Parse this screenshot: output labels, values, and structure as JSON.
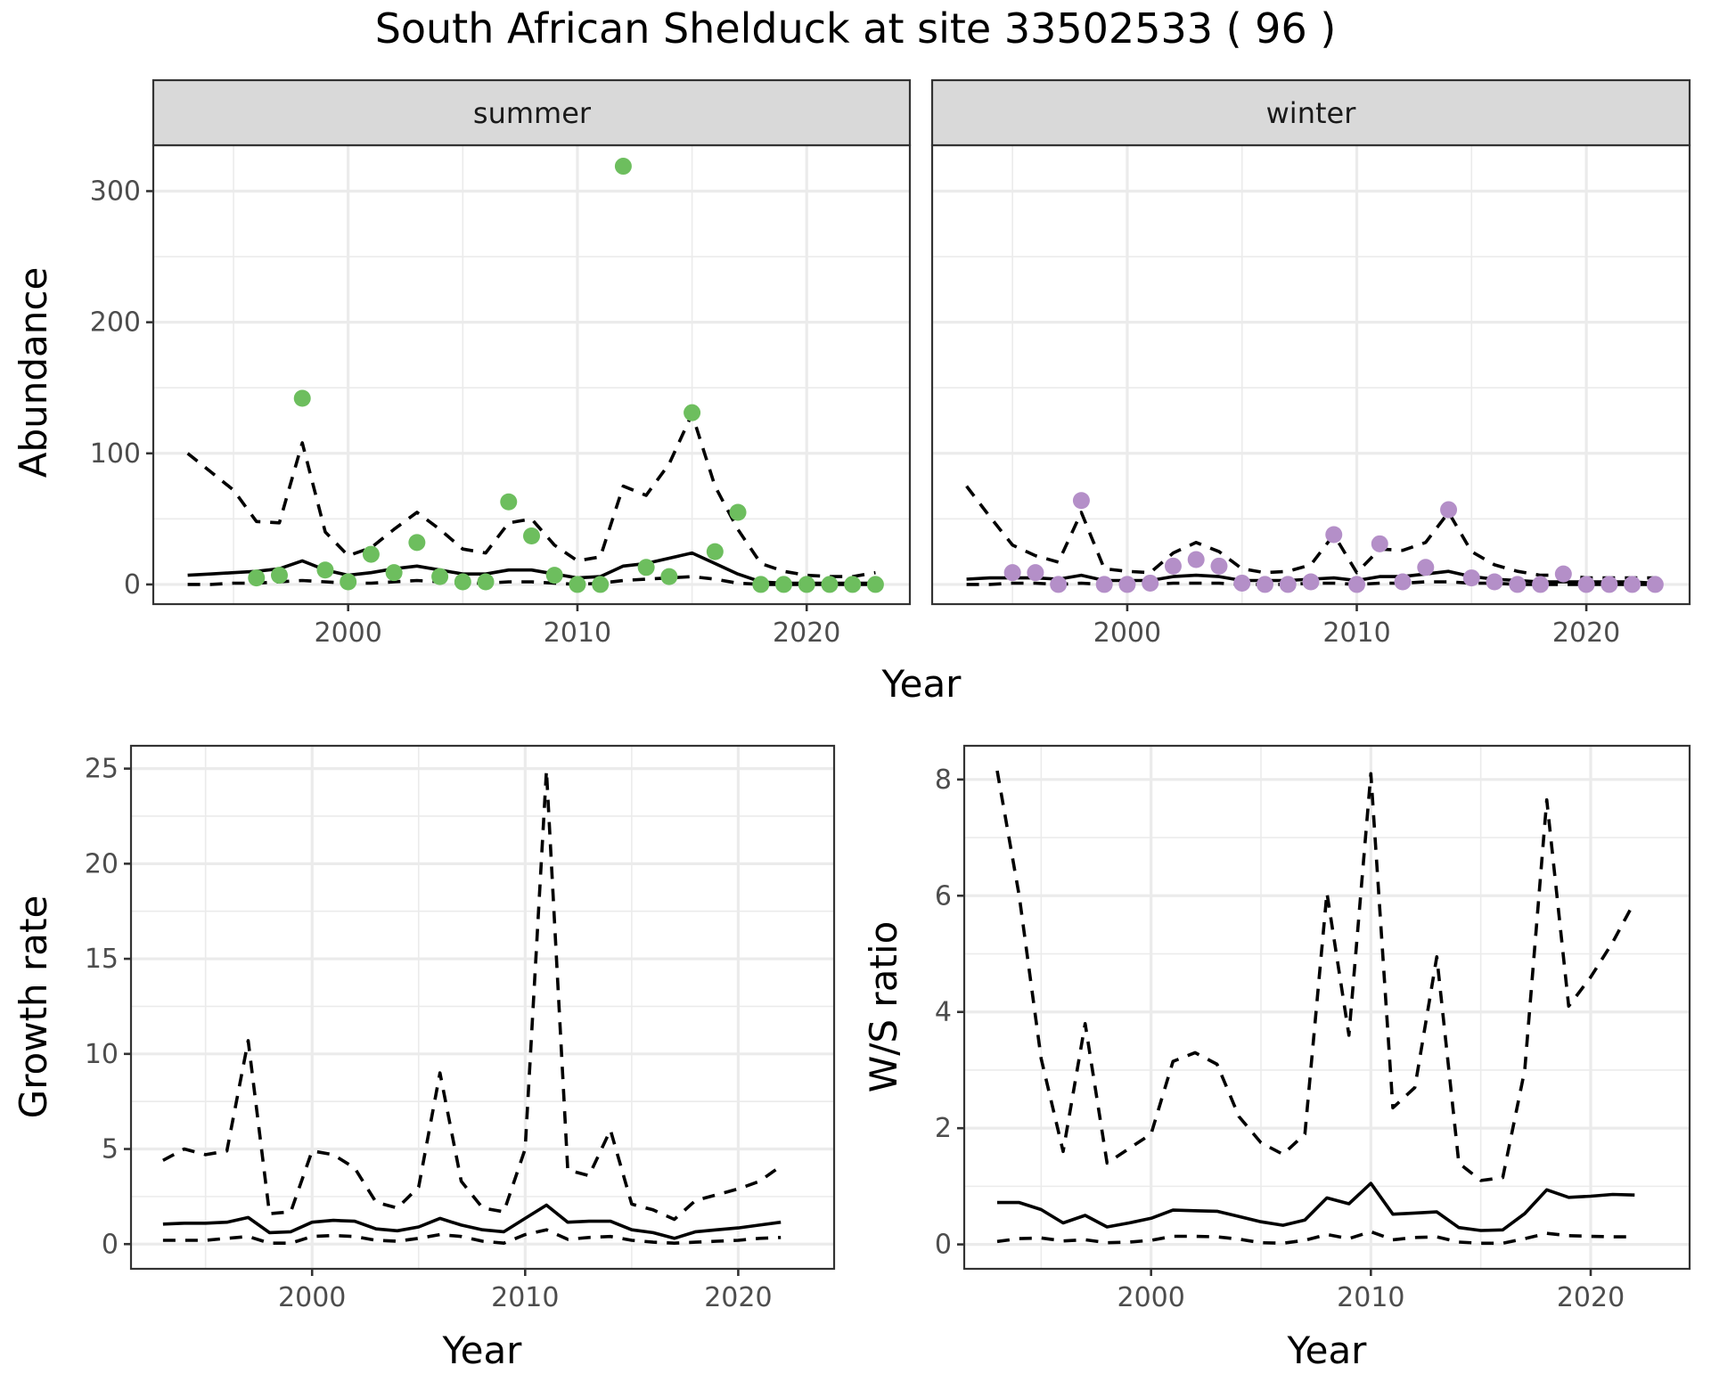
{
  "chart_data": {
    "title": "South African Shelduck at site 33502533 ( 96 )",
    "panels": [
      {
        "id": "abundance-summer",
        "type": "line+scatter",
        "strip_label": "summer",
        "ylabel": "Abundance",
        "xlabel": "",
        "ylim": [
          -15,
          335
        ],
        "xlim": [
          1991.5,
          2024.5
        ],
        "yticks": [
          0,
          100,
          200,
          300
        ],
        "xticks": [
          2000,
          2010,
          2020
        ],
        "point_color": "#6DBE5E",
        "points": {
          "x": [
            1996,
            1997,
            1998,
            1999,
            2000,
            2001,
            2002,
            2003,
            2004,
            2005,
            2006,
            2007,
            2008,
            2009,
            2010,
            2011,
            2012,
            2013,
            2014,
            2015,
            2016,
            2017,
            2018,
            2019,
            2020,
            2021,
            2022,
            2023
          ],
          "y": [
            5,
            7,
            142,
            11,
            2,
            23,
            9,
            32,
            6,
            2,
            2,
            63,
            37,
            7,
            0,
            0,
            319,
            13,
            6,
            131,
            25,
            55,
            0,
            0,
            0,
            0,
            0,
            0
          ]
        },
        "lines": {
          "x": [
            1993,
            1994,
            1995,
            1996,
            1997,
            1998,
            1999,
            2000,
            2001,
            2002,
            2003,
            2004,
            2005,
            2006,
            2007,
            2008,
            2009,
            2010,
            2011,
            2012,
            2013,
            2014,
            2015,
            2016,
            2017,
            2018,
            2019,
            2020,
            2021,
            2022,
            2023
          ],
          "upper": [
            100,
            86,
            72,
            48,
            47,
            108,
            40,
            22,
            28,
            42,
            55,
            42,
            27,
            24,
            47,
            50,
            30,
            18,
            21,
            75,
            68,
            92,
            130,
            75,
            42,
            16,
            10,
            7,
            6,
            6,
            9
          ],
          "mid": [
            7,
            8,
            9,
            10,
            12,
            18,
            11,
            7,
            9,
            12,
            14,
            11,
            8,
            8,
            11,
            11,
            8,
            5,
            6,
            14,
            16,
            20,
            24,
            16,
            8,
            2,
            1,
            1,
            1,
            1,
            1
          ],
          "lower": [
            0,
            0,
            1,
            1,
            2,
            3,
            2,
            1,
            1,
            2,
            3,
            2,
            1,
            1,
            2,
            2,
            1,
            0,
            1,
            3,
            4,
            5,
            6,
            4,
            1,
            0,
            0,
            0,
            0,
            0,
            0
          ]
        }
      },
      {
        "id": "abundance-winter",
        "type": "line+scatter",
        "strip_label": "winter",
        "ylabel": "",
        "xlabel": "",
        "ylim": [
          -15,
          335
        ],
        "xlim": [
          1991.5,
          2024.5
        ],
        "yticks": [
          0,
          100,
          200,
          300
        ],
        "xticks": [
          2000,
          2010,
          2020
        ],
        "point_color": "#B48FC8",
        "points": {
          "x": [
            1995,
            1996,
            1997,
            1998,
            1999,
            2000,
            2001,
            2002,
            2003,
            2004,
            2005,
            2006,
            2007,
            2008,
            2009,
            2010,
            2011,
            2012,
            2013,
            2014,
            2015,
            2016,
            2017,
            2018,
            2019,
            2020,
            2021,
            2022,
            2023
          ],
          "y": [
            9,
            9,
            0,
            64,
            0,
            0,
            1,
            14,
            19,
            14,
            1,
            0,
            0,
            2,
            38,
            0,
            31,
            2,
            13,
            57,
            5,
            2,
            0,
            0,
            8,
            0,
            0,
            0,
            0
          ]
        },
        "lines": {
          "x": [
            1993,
            1994,
            1995,
            1996,
            1997,
            1998,
            1999,
            2000,
            2001,
            2002,
            2003,
            2004,
            2005,
            2006,
            2007,
            2008,
            2009,
            2010,
            2011,
            2012,
            2013,
            2014,
            2015,
            2016,
            2017,
            2018,
            2019,
            2020,
            2021,
            2022,
            2023
          ],
          "upper": [
            75,
            52,
            30,
            22,
            17,
            55,
            12,
            10,
            9,
            24,
            32,
            25,
            12,
            9,
            10,
            15,
            38,
            9,
            27,
            26,
            32,
            55,
            25,
            15,
            10,
            7,
            7,
            5,
            5,
            5,
            5
          ],
          "mid": [
            4,
            5,
            5,
            5,
            4,
            7,
            3,
            3,
            3,
            6,
            7,
            6,
            3,
            3,
            3,
            4,
            5,
            3,
            6,
            6,
            8,
            10,
            6,
            4,
            3,
            2,
            2,
            2,
            2,
            2,
            1
          ],
          "lower": [
            0,
            0,
            1,
            1,
            0,
            1,
            0,
            0,
            0,
            1,
            1,
            1,
            0,
            0,
            0,
            1,
            1,
            0,
            1,
            1,
            2,
            2,
            1,
            1,
            0,
            0,
            0,
            0,
            0,
            0,
            0
          ]
        }
      },
      {
        "id": "growth-rate",
        "type": "line",
        "ylabel": "Growth rate",
        "xlabel": "Year",
        "ylim": [
          -1.3,
          26.2
        ],
        "xlim": [
          1991.5,
          2024.5
        ],
        "yticks": [
          0,
          5,
          10,
          15,
          20,
          25
        ],
        "xticks": [
          2000,
          2010,
          2020
        ],
        "lines": {
          "x": [
            1993,
            1994,
            1995,
            1996,
            1997,
            1998,
            1999,
            2000,
            2001,
            2002,
            2003,
            2004,
            2005,
            2006,
            2007,
            2008,
            2009,
            2010,
            2011,
            2012,
            2013,
            2014,
            2015,
            2016,
            2017,
            2018,
            2019,
            2020,
            2021,
            2022
          ],
          "upper": [
            4.4,
            5.0,
            4.7,
            4.9,
            10.7,
            1.6,
            1.7,
            4.9,
            4.7,
            4.0,
            2.2,
            1.9,
            3.0,
            9.0,
            3.3,
            1.9,
            1.7,
            5.0,
            24.9,
            3.9,
            3.6,
            6.0,
            2.1,
            1.8,
            1.3,
            2.3,
            2.6,
            2.9,
            3.3,
            4.1
          ],
          "mid": [
            1.05,
            1.1,
            1.1,
            1.15,
            1.4,
            0.6,
            0.65,
            1.15,
            1.25,
            1.2,
            0.8,
            0.7,
            0.9,
            1.35,
            1.0,
            0.75,
            0.65,
            1.35,
            2.05,
            1.15,
            1.2,
            1.2,
            0.75,
            0.6,
            0.3,
            0.65,
            0.75,
            0.85,
            1.0,
            1.15
          ],
          "lower": [
            0.2,
            0.2,
            0.2,
            0.3,
            0.4,
            0.05,
            0.05,
            0.4,
            0.45,
            0.4,
            0.2,
            0.15,
            0.3,
            0.5,
            0.4,
            0.15,
            0.05,
            0.5,
            0.75,
            0.25,
            0.35,
            0.4,
            0.2,
            0.1,
            0.05,
            0.1,
            0.15,
            0.2,
            0.3,
            0.35
          ]
        }
      },
      {
        "id": "ws-ratio",
        "type": "line",
        "ylabel": "W/S ratio",
        "xlabel": "Year",
        "ylim": [
          -0.42,
          8.58
        ],
        "xlim": [
          1991.5,
          2024.5
        ],
        "yticks": [
          0,
          2,
          4,
          6,
          8
        ],
        "xticks": [
          2000,
          2010,
          2020
        ],
        "lines": {
          "x": [
            1993,
            1994,
            1995,
            1996,
            1997,
            1998,
            1999,
            2000,
            2001,
            2002,
            2003,
            2004,
            2005,
            2006,
            2007,
            2008,
            2009,
            2010,
            2011,
            2012,
            2013,
            2014,
            2015,
            2016,
            2017,
            2018,
            2019,
            2020,
            2021,
            2022
          ],
          "upper": [
            8.15,
            6.0,
            3.2,
            1.6,
            3.8,
            1.4,
            1.65,
            1.9,
            3.15,
            3.3,
            3.1,
            2.2,
            1.75,
            1.55,
            1.9,
            6.05,
            3.6,
            8.1,
            2.35,
            2.7,
            4.95,
            1.4,
            1.1,
            1.15,
            3.0,
            7.65,
            4.1,
            4.6,
            5.2,
            5.9
          ],
          "mid": [
            0.72,
            0.72,
            0.6,
            0.37,
            0.5,
            0.3,
            0.37,
            0.45,
            0.59,
            0.58,
            0.57,
            0.48,
            0.39,
            0.33,
            0.42,
            0.8,
            0.7,
            1.05,
            0.52,
            0.54,
            0.56,
            0.29,
            0.24,
            0.25,
            0.53,
            0.94,
            0.81,
            0.83,
            0.86,
            0.85
          ],
          "lower": [
            0.05,
            0.1,
            0.11,
            0.06,
            0.08,
            0.03,
            0.04,
            0.07,
            0.14,
            0.14,
            0.13,
            0.09,
            0.03,
            0.02,
            0.07,
            0.17,
            0.1,
            0.22,
            0.08,
            0.12,
            0.13,
            0.04,
            0.02,
            0.02,
            0.1,
            0.19,
            0.15,
            0.14,
            0.13,
            0.13
          ]
        }
      }
    ],
    "shared_xlabel_top": "Year",
    "grid": true,
    "legend": "none"
  }
}
